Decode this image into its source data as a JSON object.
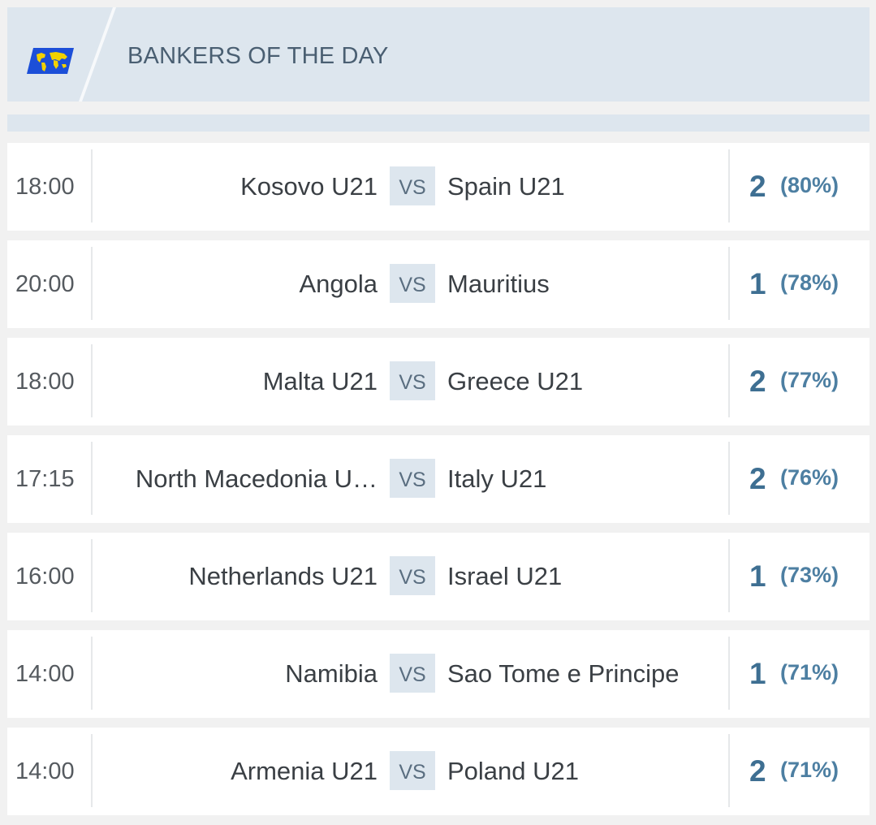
{
  "header": {
    "title": "BANKERS OF THE DAY",
    "icon": "world-map-flag-icon",
    "flag_color": "#1c4fd8",
    "map_color": "#f2d100"
  },
  "colors": {
    "accent": "#3e6f92",
    "header_bg": "#dde6ee",
    "row_bg": "#ffffff"
  },
  "matches": [
    {
      "time": "18:00",
      "home": "Kosovo U21",
      "vs": "VS",
      "away": "Spain U21",
      "tip": "2",
      "pct": "(80%)"
    },
    {
      "time": "20:00",
      "home": "Angola",
      "vs": "VS",
      "away": "Mauritius",
      "tip": "1",
      "pct": "(78%)"
    },
    {
      "time": "18:00",
      "home": "Malta U21",
      "vs": "VS",
      "away": "Greece U21",
      "tip": "2",
      "pct": "(77%)"
    },
    {
      "time": "17:15",
      "home": "North Macedonia U…",
      "vs": "VS",
      "away": "Italy U21",
      "tip": "2",
      "pct": "(76%)"
    },
    {
      "time": "16:00",
      "home": "Netherlands U21",
      "vs": "VS",
      "away": "Israel U21",
      "tip": "1",
      "pct": "(73%)"
    },
    {
      "time": "14:00",
      "home": "Namibia",
      "vs": "VS",
      "away": "Sao Tome e Principe",
      "tip": "1",
      "pct": "(71%)"
    },
    {
      "time": "14:00",
      "home": "Armenia U21",
      "vs": "VS",
      "away": "Poland U21",
      "tip": "2",
      "pct": "(71%)"
    }
  ]
}
